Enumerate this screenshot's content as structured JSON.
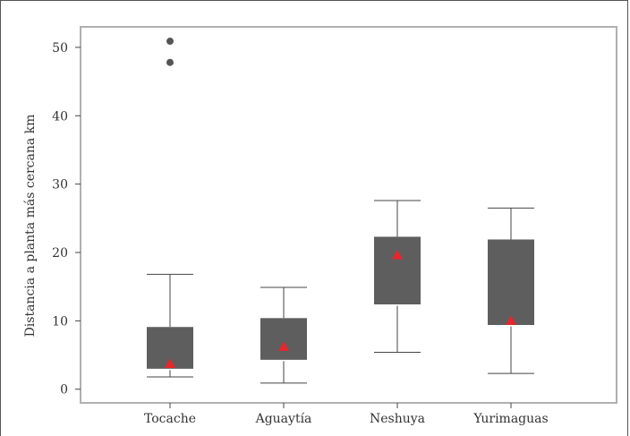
{
  "chart_data": {
    "type": "box",
    "title": "",
    "xlabel": "",
    "ylabel": "Distancia a planta más cercana km",
    "ylim": [
      -2,
      53
    ],
    "yticks": [
      0,
      10,
      20,
      30,
      40,
      50
    ],
    "grid": false,
    "categories": [
      "Tocache",
      "Aguaytía",
      "Neshuya",
      "Yurimaguas"
    ],
    "boxes": [
      {
        "category": "Tocache",
        "whisker_low": 1.8,
        "q1": 2.9,
        "median": 2.9,
        "q3": 9.1,
        "whisker_high": 16.8,
        "mean": 3.7,
        "outliers": [
          47.8,
          50.9
        ]
      },
      {
        "category": "Aguaytía",
        "whisker_low": 0.9,
        "q1": 4.2,
        "median": 4.2,
        "q3": 10.4,
        "whisker_high": 14.9,
        "mean": 6.2,
        "outliers": []
      },
      {
        "category": "Neshuya",
        "whisker_low": 5.4,
        "q1": 12.3,
        "median": 12.3,
        "q3": 22.3,
        "whisker_high": 27.6,
        "mean": 19.6,
        "outliers": []
      },
      {
        "category": "Yurimaguas",
        "whisker_low": 2.3,
        "q1": 9.3,
        "median": 9.3,
        "q3": 21.9,
        "whisker_high": 26.5,
        "mean": 10.0,
        "outliers": []
      }
    ],
    "colors": {
      "box": "#5e5e5e",
      "mean_marker": "#e8262b",
      "outlier": "#555555",
      "whisker": "#444444",
      "plot_border": "#b0b0b0"
    }
  }
}
